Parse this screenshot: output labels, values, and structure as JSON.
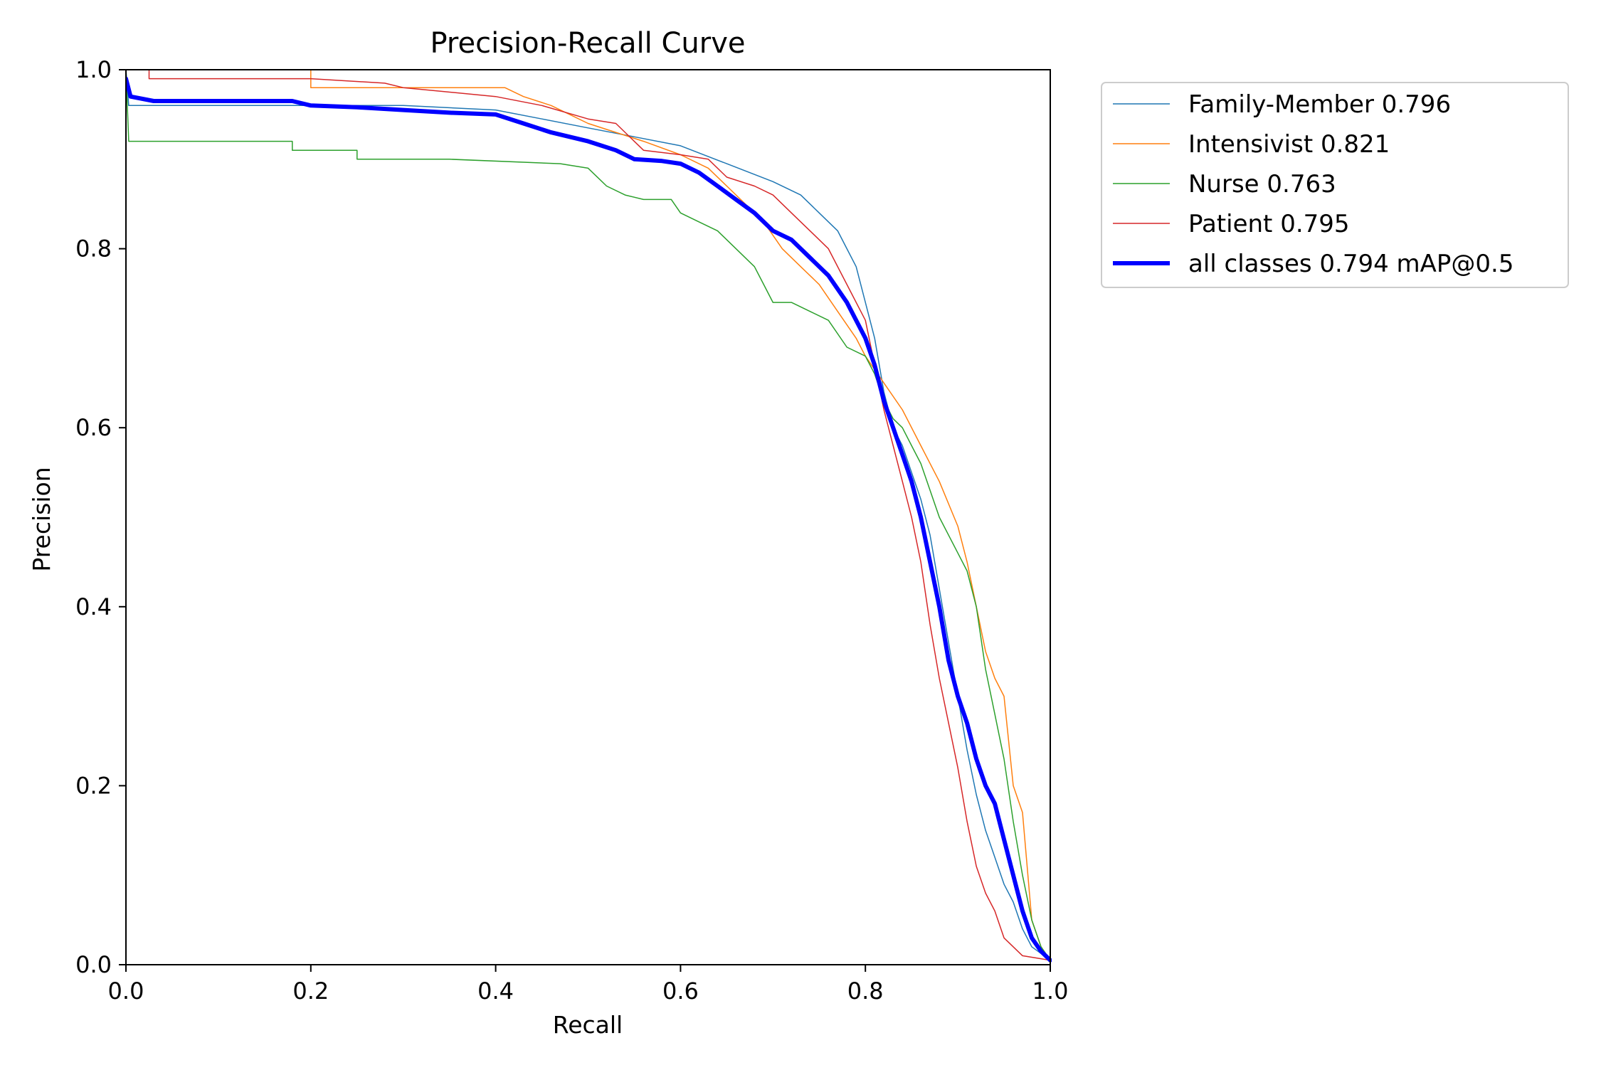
{
  "chart_data": {
    "type": "line",
    "title": "Precision-Recall Curve",
    "xlabel": "Recall",
    "ylabel": "Precision",
    "xlim": [
      0,
      1
    ],
    "ylim": [
      0,
      1
    ],
    "xticks": [
      "0.0",
      "0.2",
      "0.4",
      "0.6",
      "0.8",
      "1.0"
    ],
    "yticks": [
      "0.0",
      "0.2",
      "0.4",
      "0.6",
      "0.8",
      "1.0"
    ],
    "grid": false,
    "legend_position": "outside top-right",
    "series": [
      {
        "name": "Family-Member 0.796",
        "color": "#1f77b4",
        "width": 1.5,
        "points": [
          [
            0,
            1.0
          ],
          [
            0.003,
            0.96
          ],
          [
            0.2,
            0.96
          ],
          [
            0.3,
            0.96
          ],
          [
            0.4,
            0.955
          ],
          [
            0.45,
            0.945
          ],
          [
            0.5,
            0.935
          ],
          [
            0.55,
            0.925
          ],
          [
            0.6,
            0.915
          ],
          [
            0.65,
            0.895
          ],
          [
            0.7,
            0.875
          ],
          [
            0.73,
            0.86
          ],
          [
            0.75,
            0.84
          ],
          [
            0.77,
            0.82
          ],
          [
            0.78,
            0.8
          ],
          [
            0.79,
            0.78
          ],
          [
            0.8,
            0.74
          ],
          [
            0.81,
            0.7
          ],
          [
            0.82,
            0.64
          ],
          [
            0.83,
            0.6
          ],
          [
            0.84,
            0.58
          ],
          [
            0.85,
            0.55
          ],
          [
            0.86,
            0.52
          ],
          [
            0.87,
            0.48
          ],
          [
            0.88,
            0.42
          ],
          [
            0.89,
            0.36
          ],
          [
            0.9,
            0.3
          ],
          [
            0.91,
            0.24
          ],
          [
            0.92,
            0.19
          ],
          [
            0.93,
            0.15
          ],
          [
            0.94,
            0.12
          ],
          [
            0.95,
            0.09
          ],
          [
            0.96,
            0.07
          ],
          [
            0.97,
            0.04
          ],
          [
            0.98,
            0.02
          ],
          [
            1.0,
            0.005
          ]
        ]
      },
      {
        "name": "Intensivist 0.821",
        "color": "#ff7f0e",
        "width": 1.5,
        "points": [
          [
            0,
            1.0
          ],
          [
            0.2,
            1.0
          ],
          [
            0.2,
            0.98
          ],
          [
            0.35,
            0.98
          ],
          [
            0.41,
            0.98
          ],
          [
            0.43,
            0.97
          ],
          [
            0.46,
            0.96
          ],
          [
            0.5,
            0.94
          ],
          [
            0.53,
            0.93
          ],
          [
            0.56,
            0.92
          ],
          [
            0.6,
            0.905
          ],
          [
            0.63,
            0.89
          ],
          [
            0.65,
            0.87
          ],
          [
            0.67,
            0.85
          ],
          [
            0.69,
            0.83
          ],
          [
            0.71,
            0.8
          ],
          [
            0.73,
            0.78
          ],
          [
            0.75,
            0.76
          ],
          [
            0.77,
            0.73
          ],
          [
            0.79,
            0.7
          ],
          [
            0.8,
            0.68
          ],
          [
            0.82,
            0.65
          ],
          [
            0.84,
            0.62
          ],
          [
            0.86,
            0.58
          ],
          [
            0.88,
            0.54
          ],
          [
            0.9,
            0.49
          ],
          [
            0.91,
            0.45
          ],
          [
            0.92,
            0.4
          ],
          [
            0.93,
            0.35
          ],
          [
            0.94,
            0.32
          ],
          [
            0.95,
            0.3
          ],
          [
            0.96,
            0.2
          ],
          [
            0.97,
            0.17
          ],
          [
            0.98,
            0.05
          ],
          [
            0.99,
            0.02
          ],
          [
            1.0,
            0.005
          ]
        ]
      },
      {
        "name": "Nurse 0.763",
        "color": "#2ca02c",
        "width": 1.5,
        "points": [
          [
            0,
            1.0
          ],
          [
            0.003,
            0.92
          ],
          [
            0.18,
            0.92
          ],
          [
            0.18,
            0.91
          ],
          [
            0.25,
            0.91
          ],
          [
            0.25,
            0.9
          ],
          [
            0.35,
            0.9
          ],
          [
            0.47,
            0.895
          ],
          [
            0.5,
            0.89
          ],
          [
            0.52,
            0.87
          ],
          [
            0.54,
            0.86
          ],
          [
            0.56,
            0.855
          ],
          [
            0.59,
            0.855
          ],
          [
            0.6,
            0.84
          ],
          [
            0.62,
            0.83
          ],
          [
            0.64,
            0.82
          ],
          [
            0.66,
            0.8
          ],
          [
            0.67,
            0.79
          ],
          [
            0.68,
            0.78
          ],
          [
            0.69,
            0.76
          ],
          [
            0.7,
            0.74
          ],
          [
            0.72,
            0.74
          ],
          [
            0.74,
            0.73
          ],
          [
            0.76,
            0.72
          ],
          [
            0.78,
            0.69
          ],
          [
            0.8,
            0.68
          ],
          [
            0.81,
            0.66
          ],
          [
            0.82,
            0.63
          ],
          [
            0.83,
            0.61
          ],
          [
            0.84,
            0.6
          ],
          [
            0.85,
            0.58
          ],
          [
            0.86,
            0.56
          ],
          [
            0.87,
            0.53
          ],
          [
            0.88,
            0.5
          ],
          [
            0.89,
            0.48
          ],
          [
            0.9,
            0.46
          ],
          [
            0.91,
            0.44
          ],
          [
            0.92,
            0.4
          ],
          [
            0.93,
            0.33
          ],
          [
            0.94,
            0.28
          ],
          [
            0.95,
            0.23
          ],
          [
            0.96,
            0.16
          ],
          [
            0.97,
            0.1
          ],
          [
            0.98,
            0.05
          ],
          [
            0.99,
            0.02
          ],
          [
            1.0,
            0.005
          ]
        ]
      },
      {
        "name": "Patient 0.795",
        "color": "#d62728",
        "width": 1.5,
        "points": [
          [
            0,
            1.0
          ],
          [
            0.025,
            1.0
          ],
          [
            0.025,
            0.99
          ],
          [
            0.2,
            0.99
          ],
          [
            0.28,
            0.985
          ],
          [
            0.3,
            0.98
          ],
          [
            0.4,
            0.97
          ],
          [
            0.45,
            0.96
          ],
          [
            0.5,
            0.945
          ],
          [
            0.53,
            0.94
          ],
          [
            0.56,
            0.91
          ],
          [
            0.6,
            0.905
          ],
          [
            0.63,
            0.9
          ],
          [
            0.65,
            0.88
          ],
          [
            0.68,
            0.87
          ],
          [
            0.7,
            0.86
          ],
          [
            0.72,
            0.84
          ],
          [
            0.74,
            0.82
          ],
          [
            0.76,
            0.8
          ],
          [
            0.78,
            0.76
          ],
          [
            0.8,
            0.72
          ],
          [
            0.81,
            0.67
          ],
          [
            0.82,
            0.62
          ],
          [
            0.83,
            0.58
          ],
          [
            0.84,
            0.54
          ],
          [
            0.85,
            0.5
          ],
          [
            0.86,
            0.45
          ],
          [
            0.87,
            0.38
          ],
          [
            0.88,
            0.32
          ],
          [
            0.89,
            0.27
          ],
          [
            0.9,
            0.22
          ],
          [
            0.91,
            0.16
          ],
          [
            0.92,
            0.11
          ],
          [
            0.93,
            0.08
          ],
          [
            0.94,
            0.06
          ],
          [
            0.95,
            0.03
          ],
          [
            0.97,
            0.01
          ],
          [
            1.0,
            0.005
          ]
        ]
      },
      {
        "name": "all classes 0.794 mAP@0.5",
        "color": "#0000ff",
        "width": 6,
        "points": [
          [
            0,
            0.99
          ],
          [
            0.005,
            0.97
          ],
          [
            0.03,
            0.965
          ],
          [
            0.1,
            0.965
          ],
          [
            0.18,
            0.965
          ],
          [
            0.2,
            0.96
          ],
          [
            0.25,
            0.958
          ],
          [
            0.3,
            0.955
          ],
          [
            0.35,
            0.952
          ],
          [
            0.4,
            0.95
          ],
          [
            0.43,
            0.94
          ],
          [
            0.46,
            0.93
          ],
          [
            0.5,
            0.92
          ],
          [
            0.53,
            0.91
          ],
          [
            0.55,
            0.9
          ],
          [
            0.58,
            0.898
          ],
          [
            0.6,
            0.895
          ],
          [
            0.62,
            0.885
          ],
          [
            0.64,
            0.87
          ],
          [
            0.66,
            0.855
          ],
          [
            0.68,
            0.84
          ],
          [
            0.7,
            0.82
          ],
          [
            0.72,
            0.81
          ],
          [
            0.74,
            0.79
          ],
          [
            0.76,
            0.77
          ],
          [
            0.78,
            0.74
          ],
          [
            0.8,
            0.7
          ],
          [
            0.81,
            0.67
          ],
          [
            0.82,
            0.63
          ],
          [
            0.83,
            0.6
          ],
          [
            0.84,
            0.57
          ],
          [
            0.85,
            0.54
          ],
          [
            0.86,
            0.5
          ],
          [
            0.87,
            0.45
          ],
          [
            0.88,
            0.4
          ],
          [
            0.89,
            0.34
          ],
          [
            0.9,
            0.3
          ],
          [
            0.91,
            0.27
          ],
          [
            0.92,
            0.23
          ],
          [
            0.93,
            0.2
          ],
          [
            0.94,
            0.18
          ],
          [
            0.95,
            0.14
          ],
          [
            0.96,
            0.1
          ],
          [
            0.97,
            0.06
          ],
          [
            0.98,
            0.03
          ],
          [
            0.99,
            0.015
          ],
          [
            1.0,
            0.005
          ]
        ]
      }
    ]
  }
}
